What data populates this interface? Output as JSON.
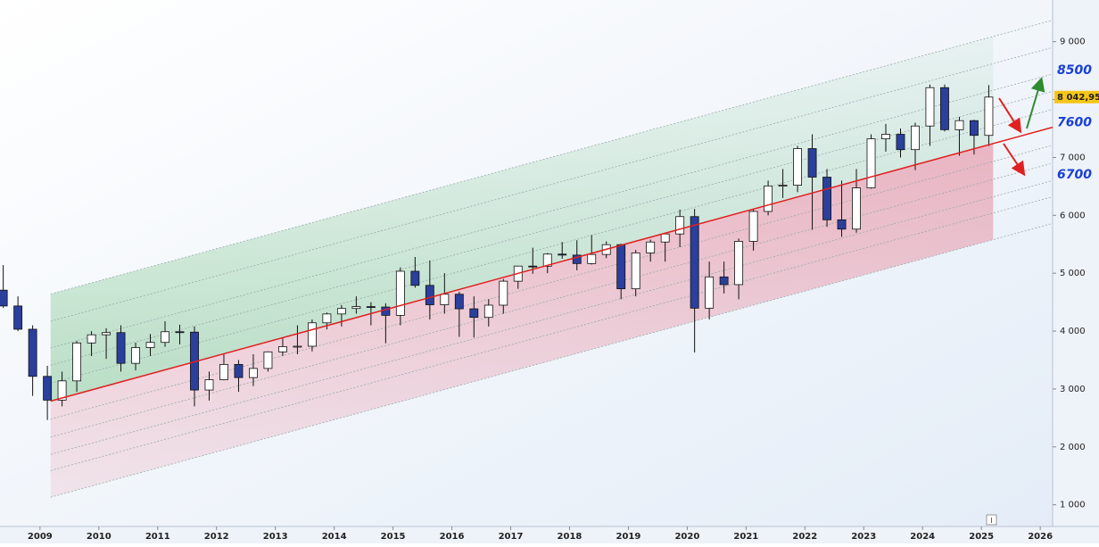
{
  "chart_data": {
    "type": "candlestick",
    "x": [
      2008.375,
      2008.625,
      2008.875,
      2009.125,
      2009.375,
      2009.625,
      2009.875,
      2010.125,
      2010.375,
      2010.625,
      2010.875,
      2011.125,
      2011.375,
      2011.625,
      2011.875,
      2012.125,
      2012.375,
      2012.625,
      2012.875,
      2013.125,
      2013.375,
      2013.625,
      2013.875,
      2014.125,
      2014.375,
      2014.625,
      2014.875,
      2015.125,
      2015.375,
      2015.625,
      2015.875,
      2016.125,
      2016.375,
      2016.625,
      2016.875,
      2017.125,
      2017.375,
      2017.625,
      2017.875,
      2018.125,
      2018.375,
      2018.625,
      2018.875,
      2019.125,
      2019.375,
      2019.625,
      2019.875,
      2020.125,
      2020.375,
      2020.625,
      2020.875,
      2021.125,
      2021.375,
      2021.625,
      2021.875,
      2022.125,
      2022.375,
      2022.625,
      2022.875,
      2023.125,
      2023.375,
      2023.625,
      2023.875,
      2024.125,
      2024.375,
      2024.625,
      2024.875,
      2025.125
    ],
    "open": [
      4707,
      4434,
      4032,
      3218,
      2807,
      3140,
      3795,
      3936,
      3974,
      3443,
      3715,
      3805,
      3989,
      3982,
      2982,
      3160,
      3424,
      3197,
      3355,
      3641,
      3731,
      3739,
      4143,
      4296,
      4391,
      4423,
      4416,
      4272,
      5034,
      4790,
      4455,
      4637,
      4385,
      4237,
      4448,
      4862,
      5123,
      5121,
      5330,
      5313,
      5167,
      5324,
      5493,
      4731,
      5351,
      5539,
      5678,
      5978,
      4396,
      4936,
      4803,
      5551,
      6067,
      6508,
      6520,
      7153,
      6660,
      5923,
      5762,
      6474,
      7322,
      7400,
      7135,
      7543,
      8206,
      7479,
      7636,
      7381
    ],
    "high": [
      5140,
      4600,
      4100,
      3400,
      3300,
      3830,
      4000,
      4050,
      4100,
      3800,
      3950,
      4170,
      4110,
      4080,
      3300,
      3600,
      3500,
      3600,
      3650,
      3880,
      4100,
      4200,
      4320,
      4450,
      4600,
      4500,
      4480,
      5100,
      5280,
      5220,
      5000,
      4680,
      4600,
      4550,
      4900,
      5130,
      5440,
      5350,
      5540,
      5570,
      5660,
      5550,
      5510,
      5400,
      5580,
      5700,
      6100,
      6110,
      5200,
      5200,
      5600,
      6100,
      6600,
      6800,
      7200,
      7400,
      6800,
      6600,
      6800,
      7400,
      7580,
      7500,
      7600,
      8260,
      8260,
      7700,
      7650,
      8250
    ],
    "low": [
      4400,
      4000,
      2880,
      2465,
      2700,
      2950,
      3570,
      3520,
      3300,
      3320,
      3570,
      3730,
      3770,
      2700,
      2800,
      3150,
      2950,
      3050,
      3300,
      3570,
      3600,
      3650,
      4030,
      4080,
      4300,
      4100,
      3790,
      4100,
      4750,
      4200,
      4300,
      3900,
      3890,
      4080,
      4300,
      4730,
      4990,
      5000,
      5250,
      5050,
      5150,
      5260,
      4550,
      4600,
      5200,
      5200,
      5450,
      3630,
      4200,
      4650,
      4550,
      5390,
      6000,
      6300,
      6400,
      5750,
      5800,
      5630,
      5700,
      6460,
      7100,
      7000,
      6780,
      7200,
      7450,
      7030,
      7050,
      7200
    ],
    "close": [
      4434,
      4032,
      3218,
      2807,
      3140,
      3795,
      3936,
      3974,
      3443,
      3715,
      3805,
      3989,
      3982,
      2982,
      3160,
      3424,
      3197,
      3355,
      3641,
      3731,
      3739,
      4143,
      4296,
      4391,
      4423,
      4416,
      4272,
      5034,
      4790,
      4455,
      4637,
      4385,
      4237,
      4448,
      4862,
      5123,
      5121,
      5330,
      5313,
      5167,
      5324,
      5493,
      4731,
      5351,
      5539,
      5678,
      5978,
      4396,
      4936,
      4803,
      5551,
      6067,
      6508,
      6520,
      7153,
      6660,
      5923,
      5762,
      6474,
      7322,
      7400,
      7135,
      7543,
      8206,
      7479,
      7636,
      7381,
      8042.95
    ],
    "up_color": "#ffffff",
    "down_color": "#2b3f9c",
    "xlim": [
      2008.32,
      2026.21
    ],
    "xticks": [
      2009,
      2010,
      2011,
      2012,
      2013,
      2014,
      2015,
      2016,
      2017,
      2018,
      2019,
      2020,
      2021,
      2022,
      2023,
      2024,
      2025,
      2026
    ],
    "ylim": [
      640,
      9720
    ],
    "yticks": [
      {
        "value": 1000,
        "label": "1 000"
      },
      {
        "value": 2000,
        "label": "2 000"
      },
      {
        "value": 3000,
        "label": "3 000"
      },
      {
        "value": 4000,
        "label": "4 000"
      },
      {
        "value": 5000,
        "label": "5 000"
      },
      {
        "value": 6000,
        "label": "6 000"
      },
      {
        "value": 7000,
        "label": "7 000"
      },
      {
        "value": 8000,
        "label": "8 000"
      },
      {
        "value": 9000,
        "label": "9 000"
      }
    ],
    "channel": {
      "x": [
        2009.18,
        2026.21
      ],
      "center": [
        2790,
        7521
      ],
      "center_color": "#e02020",
      "fill_end": 2025.2,
      "offsets": [
        1850,
        1380,
        920,
        620,
        310,
        -310,
        -620,
        -920,
        -1200,
        -1660
      ]
    },
    "last_price": {
      "value": 8042.95,
      "label": "8 042,95"
    },
    "annotations": [
      8500,
      7600,
      6700
    ]
  }
}
